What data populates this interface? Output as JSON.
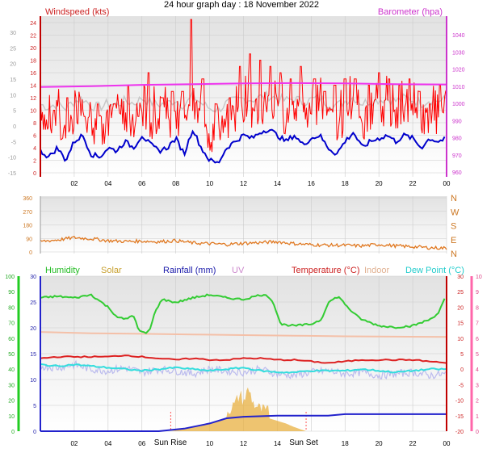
{
  "title": "24 hour graph day : 18 November 2022",
  "colors": {
    "wind": "#ff0000",
    "gust_bar": "#ff0000",
    "avg": "#0000cc",
    "baro": "#ee33ee",
    "grey": "#c8c8c8",
    "dir": "#e07820",
    "humidity": "#33cc33",
    "solar": "#e8b040",
    "rain": "#2222cc",
    "uv": "#cc99cc",
    "temp": "#dd2222",
    "indoor": "#f4c0a8",
    "dew": "#33dddd",
    "lavender": "#bbbbee",
    "grid": "#cccccc",
    "sun": "#ff5555"
  },
  "time_labels": [
    "02",
    "04",
    "06",
    "08",
    "10",
    "12",
    "14",
    "16",
    "18",
    "20",
    "22",
    "00"
  ],
  "chart_data": [
    {
      "type": "line",
      "id": "wind",
      "left_label": "Windspeed (kts)",
      "right_label": "Barometer (hpa)",
      "hours": [
        0,
        24
      ],
      "y_inner": {
        "min": 0,
        "max": 24,
        "step": 2,
        "ticks": [
          24,
          22,
          20,
          18,
          16,
          14,
          12,
          10,
          8,
          6,
          4,
          2,
          0
        ]
      },
      "y_outer": {
        "min": -15,
        "max": 30,
        "ticks": [
          30,
          25,
          20,
          15,
          10,
          5,
          0,
          -5,
          -10,
          -15
        ]
      },
      "y_right": {
        "min": 960,
        "max": 1040,
        "ticks": [
          1040,
          1030,
          1020,
          1010,
          1000,
          990,
          980,
          970,
          960
        ]
      },
      "barometer": [
        [
          0,
          1009.5
        ],
        [
          3,
          1010
        ],
        [
          6,
          1010.8
        ],
        [
          9,
          1011.2
        ],
        [
          12,
          1011.6
        ],
        [
          15,
          1011.8
        ],
        [
          18,
          1011.6
        ],
        [
          21,
          1011.2
        ],
        [
          24,
          1011
        ]
      ],
      "wind_avg": [
        [
          0,
          3.5
        ],
        [
          0.5,
          2.5
        ],
        [
          1,
          4
        ],
        [
          1.5,
          2
        ],
        [
          2,
          5
        ],
        [
          2.5,
          6
        ],
        [
          3,
          3
        ],
        [
          3.5,
          2.5
        ],
        [
          4,
          4
        ],
        [
          4.5,
          3.5
        ],
        [
          5,
          5
        ],
        [
          5.5,
          4
        ],
        [
          6,
          6
        ],
        [
          6.5,
          4.5
        ],
        [
          7,
          3.5
        ],
        [
          7.5,
          4
        ],
        [
          8,
          5.5
        ],
        [
          8.5,
          3
        ],
        [
          9,
          7
        ],
        [
          9.5,
          4
        ],
        [
          10,
          2
        ],
        [
          10.5,
          1.5
        ],
        [
          11,
          4
        ],
        [
          11.5,
          5
        ],
        [
          12,
          6
        ],
        [
          12.5,
          5.5
        ],
        [
          13,
          6.5
        ],
        [
          13.5,
          7
        ],
        [
          14,
          6
        ],
        [
          14.5,
          5
        ],
        [
          15,
          6
        ],
        [
          15.5,
          4.5
        ],
        [
          16,
          5.5
        ],
        [
          16.5,
          6
        ],
        [
          17,
          4
        ],
        [
          17.5,
          3
        ],
        [
          18,
          5
        ],
        [
          18.5,
          6.5
        ],
        [
          19,
          4
        ],
        [
          19.5,
          5
        ],
        [
          20,
          5.5
        ],
        [
          20.5,
          6
        ],
        [
          21,
          5
        ],
        [
          21.5,
          6
        ],
        [
          22,
          5.5
        ],
        [
          22.5,
          4
        ],
        [
          23,
          5.5
        ],
        [
          23.5,
          5
        ],
        [
          24,
          5.5
        ]
      ],
      "wind_peaks": [
        [
          0.8,
          10
        ],
        [
          1.6,
          12
        ],
        [
          2.6,
          9
        ],
        [
          3.4,
          11
        ],
        [
          4.4,
          11
        ],
        [
          5.2,
          14
        ],
        [
          5.8,
          9
        ],
        [
          6.4,
          16
        ],
        [
          7.2,
          12
        ],
        [
          7.8,
          13
        ],
        [
          8.4,
          13
        ],
        [
          8.9,
          24.5
        ],
        [
          9.6,
          15
        ],
        [
          10.4,
          11
        ],
        [
          11.2,
          12
        ],
        [
          11.8,
          17
        ],
        [
          12.4,
          19
        ],
        [
          13,
          18
        ],
        [
          13.6,
          17
        ],
        [
          14.2,
          16
        ],
        [
          14.8,
          15
        ],
        [
          15.4,
          17
        ],
        [
          16.2,
          15
        ],
        [
          16.8,
          13
        ],
        [
          17.4,
          14
        ],
        [
          18,
          15
        ],
        [
          18.6,
          15
        ],
        [
          19.4,
          14
        ],
        [
          20,
          16
        ],
        [
          20.6,
          15
        ],
        [
          21.2,
          14
        ],
        [
          21.8,
          15
        ],
        [
          22.4,
          13
        ],
        [
          23,
          11
        ],
        [
          23.6,
          14
        ]
      ]
    },
    {
      "type": "line",
      "id": "direction",
      "y_left": {
        "min": 0,
        "max": 360,
        "ticks": [
          360,
          270,
          180,
          90,
          0
        ]
      },
      "y_right_ticks": [
        "N",
        "W",
        "S",
        "E",
        "N"
      ],
      "values": [
        [
          0,
          70
        ],
        [
          1,
          80
        ],
        [
          2,
          95
        ],
        [
          3,
          88
        ],
        [
          4,
          75
        ],
        [
          5,
          70
        ],
        [
          6,
          72
        ],
        [
          7,
          68
        ],
        [
          8,
          75
        ],
        [
          9,
          60
        ],
        [
          10,
          55
        ],
        [
          11,
          50
        ],
        [
          12,
          58
        ],
        [
          13,
          62
        ],
        [
          14,
          68
        ],
        [
          15,
          55
        ],
        [
          16,
          48
        ],
        [
          17,
          45
        ],
        [
          18,
          44
        ],
        [
          19,
          40
        ],
        [
          20,
          50
        ],
        [
          21,
          40
        ],
        [
          22,
          35
        ],
        [
          23,
          28
        ],
        [
          24,
          25
        ]
      ]
    },
    {
      "type": "line",
      "id": "lower",
      "legend": [
        "Humidity",
        "Solar",
        "Rainfall (mm)",
        "UV",
        "Temperature (°C)",
        "Indoor",
        "Dew Point (°C)"
      ],
      "y_hum": {
        "min": 0,
        "max": 100,
        "ticks": [
          100,
          90,
          80,
          70,
          60,
          50,
          40,
          30,
          20,
          10,
          0
        ]
      },
      "y_rain": {
        "min": 0,
        "max": 30,
        "ticks": [
          30,
          25,
          20,
          15,
          10,
          5,
          0
        ]
      },
      "y_temp": {
        "min": -20,
        "max": 30,
        "ticks": [
          30,
          25,
          20,
          15,
          10,
          5,
          0,
          -5,
          -10,
          -15,
          -20
        ]
      },
      "y_uv": {
        "min": 0,
        "max": 10,
        "ticks": [
          10,
          9,
          8,
          7,
          6,
          5,
          4,
          3,
          2,
          1,
          0
        ]
      },
      "sun_labels": [
        "Sun Rise",
        "Sun Set"
      ],
      "sunrise": 7.7,
      "sunset": 15.7,
      "humidity": [
        [
          0,
          86
        ],
        [
          1,
          87
        ],
        [
          2,
          86
        ],
        [
          3,
          88
        ],
        [
          4,
          80
        ],
        [
          4.5,
          74
        ],
        [
          5,
          72
        ],
        [
          5.5,
          75
        ],
        [
          5.8,
          65
        ],
        [
          6.2,
          63
        ],
        [
          6.5,
          66
        ],
        [
          6.8,
          78
        ],
        [
          7.2,
          85
        ],
        [
          8,
          83
        ],
        [
          9,
          86
        ],
        [
          10,
          88
        ],
        [
          11,
          86
        ],
        [
          12,
          85
        ],
        [
          13,
          88
        ],
        [
          13.5,
          87
        ],
        [
          13.8,
          82
        ],
        [
          14.2,
          69
        ],
        [
          15,
          68
        ],
        [
          16,
          69
        ],
        [
          16.6,
          72
        ],
        [
          17,
          83
        ],
        [
          17.6,
          87
        ],
        [
          18,
          82
        ],
        [
          18.5,
          76
        ],
        [
          19,
          72
        ],
        [
          19.5,
          70
        ],
        [
          20,
          68
        ],
        [
          21,
          67
        ],
        [
          22,
          68
        ],
        [
          22.5,
          70
        ],
        [
          23,
          72
        ],
        [
          23.5,
          76
        ],
        [
          24,
          88
        ]
      ],
      "temperature": [
        [
          0,
          3.5
        ],
        [
          1,
          4
        ],
        [
          2,
          4
        ],
        [
          3,
          4
        ],
        [
          4,
          4
        ],
        [
          5,
          4.5
        ],
        [
          6,
          4
        ],
        [
          7,
          3.5
        ],
        [
          8,
          3
        ],
        [
          9,
          3.5
        ],
        [
          10,
          3
        ],
        [
          11,
          3
        ],
        [
          12,
          3.5
        ],
        [
          13,
          3.5
        ],
        [
          14,
          3
        ],
        [
          15,
          3
        ],
        [
          16,
          2.5
        ],
        [
          17,
          2
        ],
        [
          18,
          2.5
        ],
        [
          19,
          3
        ],
        [
          20,
          3
        ],
        [
          21,
          3
        ],
        [
          22,
          3
        ],
        [
          23,
          2.5
        ],
        [
          24,
          2
        ]
      ],
      "indoor": [
        [
          0,
          12
        ],
        [
          3,
          11.6
        ],
        [
          6,
          11.4
        ],
        [
          9,
          11.2
        ],
        [
          12,
          11
        ],
        [
          15,
          10.8
        ],
        [
          18,
          10.6
        ],
        [
          21,
          10.5
        ],
        [
          24,
          10.4
        ]
      ],
      "dew_point": [
        [
          0,
          1.5
        ],
        [
          1,
          1
        ],
        [
          2,
          1.5
        ],
        [
          3,
          1
        ],
        [
          4,
          0.5
        ],
        [
          5,
          0
        ],
        [
          6,
          -0.5
        ],
        [
          7,
          0
        ],
        [
          8,
          0.5
        ],
        [
          9,
          0
        ],
        [
          10,
          -0.5
        ],
        [
          11,
          0
        ],
        [
          12,
          0.5
        ],
        [
          13,
          -0.5
        ],
        [
          14,
          -1
        ],
        [
          15,
          -1
        ],
        [
          16,
          -0.5
        ],
        [
          17,
          -0.5
        ],
        [
          18,
          -0.5
        ],
        [
          19,
          0
        ],
        [
          20,
          -0.5
        ],
        [
          21,
          -1
        ],
        [
          22,
          -0.5
        ],
        [
          23,
          0
        ],
        [
          24,
          0
        ]
      ],
      "lavender": [
        [
          0,
          1
        ],
        [
          1,
          0.5
        ],
        [
          2,
          1.5
        ],
        [
          3,
          0
        ],
        [
          4,
          -0.5
        ],
        [
          5,
          0.5
        ],
        [
          6,
          -1
        ],
        [
          7,
          0
        ],
        [
          8,
          -0.5
        ],
        [
          9,
          -1.5
        ],
        [
          10,
          0
        ],
        [
          11,
          -0.5
        ],
        [
          12,
          -1
        ],
        [
          13,
          0
        ],
        [
          14,
          -1.5
        ],
        [
          15,
          -2
        ],
        [
          16,
          -1
        ],
        [
          17,
          -0.5
        ],
        [
          18,
          -1.5
        ],
        [
          19,
          -1
        ],
        [
          20,
          -2
        ],
        [
          21,
          -1.5
        ],
        [
          22,
          -1
        ],
        [
          23,
          -2
        ],
        [
          24,
          -1.5
        ]
      ],
      "rain": [
        [
          0,
          0
        ],
        [
          7,
          0
        ],
        [
          8.5,
          0.5
        ],
        [
          10,
          1.5
        ],
        [
          11,
          2.5
        ],
        [
          12,
          2.8
        ],
        [
          14,
          3
        ],
        [
          16,
          3
        ],
        [
          17,
          3
        ],
        [
          18,
          3.3
        ],
        [
          20,
          3.3
        ],
        [
          22,
          3.3
        ],
        [
          24,
          3.3
        ]
      ],
      "solar": [
        [
          7.7,
          0
        ],
        [
          8.5,
          0.5
        ],
        [
          9.5,
          1
        ],
        [
          10.5,
          2
        ],
        [
          11,
          2.5
        ],
        [
          11.5,
          4
        ],
        [
          11.8,
          6
        ],
        [
          12,
          4.5
        ],
        [
          12.3,
          7
        ],
        [
          12.6,
          4
        ],
        [
          13,
          3
        ],
        [
          13.5,
          2.5
        ],
        [
          14,
          2
        ],
        [
          14.5,
          1.5
        ],
        [
          15,
          0.8
        ],
        [
          15.7,
          0
        ]
      ]
    }
  ]
}
